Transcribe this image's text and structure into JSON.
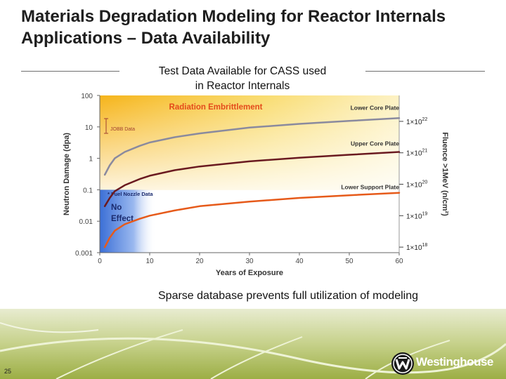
{
  "slide": {
    "title": "Materials Degradation Modeling for Reactor Internals Applications – Data Availability",
    "subtitle_line1": "Test Data Available for CASS used",
    "subtitle_line2": "in Reactor Internals",
    "caption": "Sparse database prevents full utilization of modeling",
    "page_number": "25",
    "brand": "Westinghouse"
  },
  "colors": {
    "accent_gold": "#f5c020",
    "upper_curve": "#6a1a20",
    "orange_curve": "#e65a1a",
    "no_effect_blue": "#3b6fd6"
  },
  "chart_data": {
    "type": "line",
    "xlabel": "Years of Exposure",
    "ylabel": "Neutron Damage (dpa)",
    "y2label": "Fluence >1MeV (n/cm²)",
    "xlim": [
      0,
      60
    ],
    "ylim": [
      0.001,
      100
    ],
    "yscale": "log",
    "x_ticks": [
      "0",
      "10",
      "20",
      "30",
      "40",
      "50",
      "60"
    ],
    "y_ticks": [
      "100",
      "10",
      "1",
      "0.1",
      "0.01",
      "0.001"
    ],
    "y2_ticks": [
      {
        "base": "1×10",
        "exp": "22",
        "dpa": 15
      },
      {
        "base": "1×10",
        "exp": "21",
        "dpa": 1.5
      },
      {
        "base": "1×10",
        "exp": "20",
        "dpa": 0.15
      },
      {
        "base": "1×10",
        "exp": "19",
        "dpa": 0.015
      },
      {
        "base": "1×10",
        "exp": "18",
        "dpa": 0.0015
      }
    ],
    "regions": {
      "radiation": "Radiation Embrittlement",
      "no_effect_line1": "No",
      "no_effect_line2": "Effect",
      "threshold_dpa": 0.1
    },
    "annotations": {
      "jobb": "JOBB Data",
      "fuel_nozzle": "Fuel Nozzle Data"
    },
    "series": [
      {
        "name": "Lower Core Plate",
        "color": "#8a8a9e",
        "x": [
          1,
          2,
          3,
          5,
          8,
          10,
          15,
          20,
          30,
          40,
          50,
          60
        ],
        "y": [
          0.3,
          0.6,
          1,
          1.6,
          2.5,
          3.2,
          4.7,
          6.2,
          9.5,
          12.5,
          15.5,
          19
        ]
      },
      {
        "name": "Upper Core Plate",
        "color": "#6a1a20",
        "x": [
          1,
          2,
          3,
          5,
          8,
          10,
          15,
          20,
          30,
          40,
          50,
          60
        ],
        "y": [
          0.03,
          0.055,
          0.09,
          0.14,
          0.22,
          0.28,
          0.42,
          0.55,
          0.8,
          1.05,
          1.3,
          1.6
        ]
      },
      {
        "name": "Lower Support Plate",
        "color": "#e65a1a",
        "x": [
          1,
          2,
          3,
          5,
          8,
          10,
          15,
          20,
          30,
          40,
          50,
          60
        ],
        "y": [
          0.0015,
          0.003,
          0.005,
          0.008,
          0.012,
          0.015,
          0.022,
          0.03,
          0.042,
          0.055,
          0.067,
          0.08
        ]
      }
    ]
  }
}
